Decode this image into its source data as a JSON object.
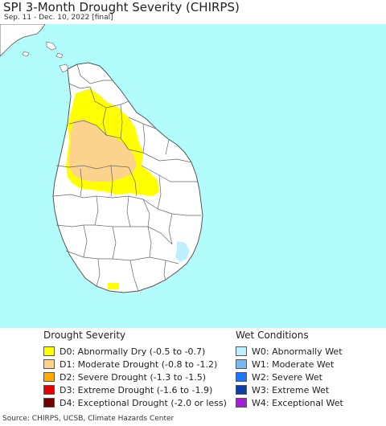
{
  "header": {
    "title": "SPI 3-Month Drought Severity (CHIRPS)",
    "subtitle": "Sep. 11 - Dec. 10, 2022 [final]"
  },
  "colors": {
    "ocean": "#b3fcfc",
    "land": "#ffffff",
    "outside_land": "#ffffff",
    "border": "#555555",
    "d0": "#ffff00",
    "d1": "#fcd38d",
    "w0": "#b7e8fc"
  },
  "legend": {
    "drought": {
      "title": "Drought Severity",
      "items": [
        {
          "code": "D0",
          "label": "D0: Abnormally Dry (-0.5 to -0.7)",
          "color": "#ffff00"
        },
        {
          "code": "D1",
          "label": "D1: Moderate Drought (-0.8 to -1.2)",
          "color": "#fcd38d"
        },
        {
          "code": "D2",
          "label": "D2: Severe Drought (-1.3 to -1.5)",
          "color": "#ffaa00"
        },
        {
          "code": "D3",
          "label": "D3: Extreme Drought (-1.6 to -1.9)",
          "color": "#e60000"
        },
        {
          "code": "D4",
          "label": "D4: Exceptional Drought (-2.0 or less)",
          "color": "#730000"
        }
      ]
    },
    "wet": {
      "title": "Wet Conditions",
      "items": [
        {
          "code": "W0",
          "label": "W0: Abnormally Wet",
          "color": "#bfeffc"
        },
        {
          "code": "W1",
          "label": "W1: Moderate Wet",
          "color": "#7ab8f5"
        },
        {
          "code": "W2",
          "label": "W2: Severe Wet",
          "color": "#1a75ff"
        },
        {
          "code": "W3",
          "label": "W3: Extreme Wet",
          "color": "#0a3ea8"
        },
        {
          "code": "W4",
          "label": "W4: Exceptional Wet",
          "color": "#a020d8"
        }
      ]
    }
  },
  "footer": {
    "source": "Source: CHIRPS, UCSB, Climate Hazards Center"
  }
}
